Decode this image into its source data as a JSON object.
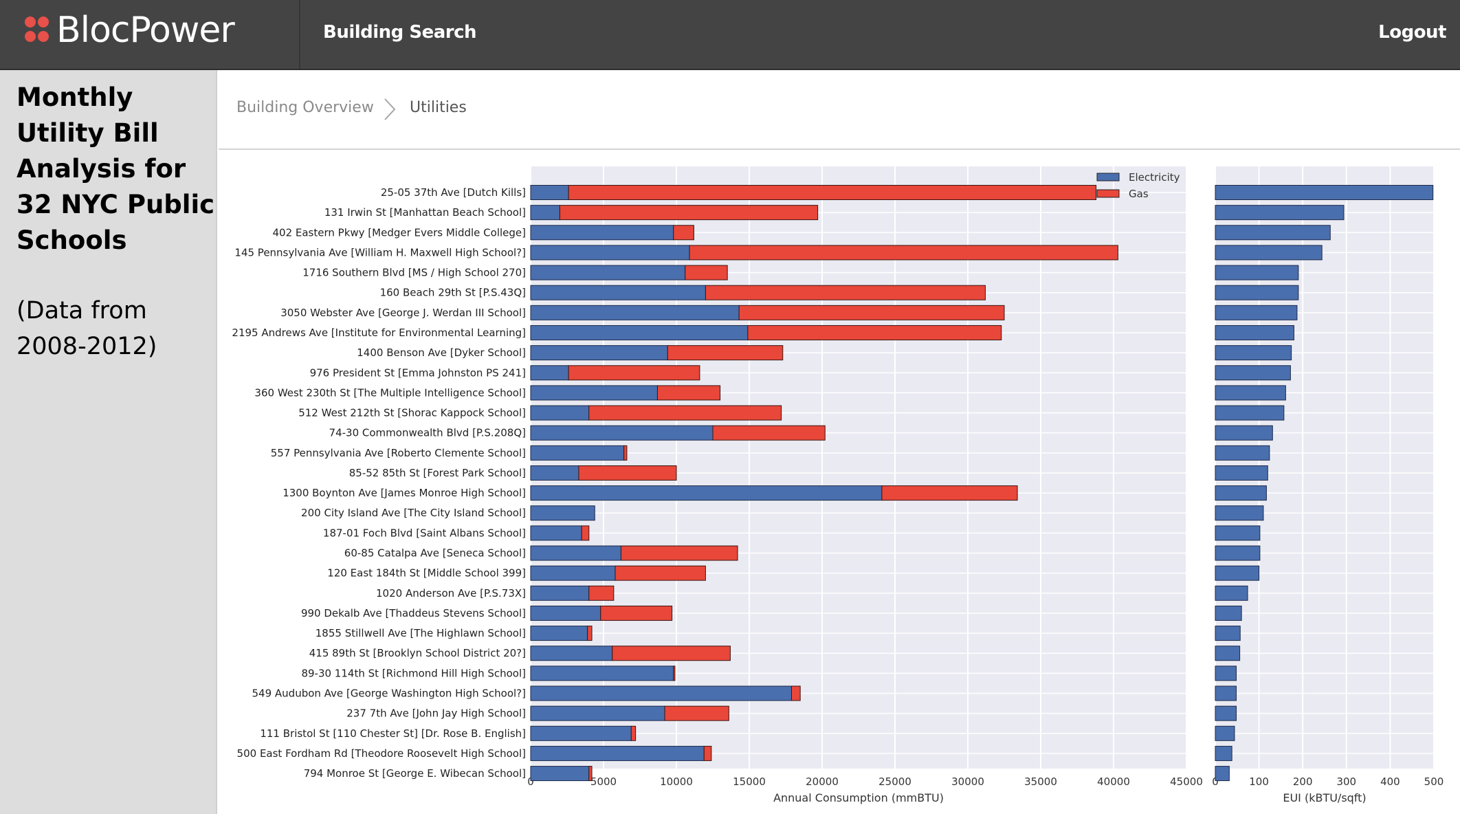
{
  "brand": {
    "name": "BlocPower",
    "dot_color": "#e8504a"
  },
  "nav": {
    "building_search": "Building Search",
    "logout": "Logout"
  },
  "sidebar": {
    "heading": "Monthly Utility Bill Analysis for 32 NYC Public Schools",
    "note": "(Data from 2008-2012)"
  },
  "breadcrumb": {
    "overview": "Building Overview",
    "current": "Utilities"
  },
  "colors": {
    "electricity": "#4a6fae",
    "gas": "#e8473a",
    "plot_bg": "#eaeaf2",
    "topbar": "#444444"
  },
  "chart_data": [
    {
      "type": "bar",
      "orientation": "horizontal",
      "stacked": true,
      "title": "",
      "xlabel": "Annual Consumption (mmBTU)",
      "ylabel": "",
      "xlim": [
        0,
        45000
      ],
      "xticks": [
        "0",
        "5000",
        "10000",
        "15000",
        "20000",
        "25000",
        "30000",
        "35000",
        "40000",
        "45000"
      ],
      "grid": true,
      "legend_position": "top-right",
      "categories": [
        "25-05 37th Ave [Dutch Kills]",
        "131 Irwin St [Manhattan Beach School]",
        "402 Eastern Pkwy [Medger Evers Middle College]",
        "145 Pennsylvania Ave [William H. Maxwell High School?]",
        "1716 Southern Blvd [MS / High School 270]",
        "160 Beach 29th St [P.S.43Q]",
        "3050 Webster Ave [George J. Werdan III School]",
        "2195 Andrews Ave [Institute for Environmental Learning]",
        "1400 Benson Ave [Dyker School]",
        "976 President St [Emma Johnston PS 241]",
        "360 West 230th St [The Multiple Intelligence School]",
        "512 West 212th St [Shorac Kappock School]",
        "74-30 Commonwealth Blvd [P.S.208Q]",
        "557 Pennsylvania Ave [Roberto Clemente School]",
        "85-52 85th St [Forest Park School]",
        "1300 Boynton Ave [James Monroe High School]",
        "200 City Island Ave [The City Island School]",
        "187-01 Foch Blvd [Saint Albans School]",
        "60-85 Catalpa Ave [Seneca School]",
        "120 East 184th St [Middle School 399]",
        "1020 Anderson Ave [P.S.73X]",
        "990 Dekalb Ave [Thaddeus Stevens School]",
        "1855 Stillwell Ave [The Highlawn School]",
        "415 89th St [Brooklyn School District 20?]",
        "89-30 114th St [Richmond Hill High School]",
        "549 Audubon Ave [George Washington High School?]",
        "237 7th Ave [John Jay High School]",
        "111 Bristol St [110 Chester St] [Dr. Rose B. English]",
        "500 East Fordham Rd [Theodore Roosevelt High School]",
        "794 Monroe St [George E. Wibecan School]"
      ],
      "series": [
        {
          "name": "Electricity",
          "color": "#4a6fae",
          "values": [
            2600,
            2000,
            9800,
            10900,
            10600,
            12000,
            14300,
            14900,
            9400,
            2600,
            8700,
            4000,
            12500,
            6400,
            3300,
            24100,
            4400,
            3500,
            6200,
            5800,
            4000,
            4800,
            3900,
            5600,
            9800,
            17900,
            9200,
            6900,
            11900,
            4000
          ]
        },
        {
          "name": "Gas",
          "color": "#e8473a",
          "values": [
            36200,
            17700,
            1400,
            29400,
            2900,
            19200,
            18200,
            17400,
            7900,
            9000,
            4300,
            13200,
            7700,
            200,
            6700,
            9300,
            0,
            500,
            8000,
            6200,
            1700,
            4900,
            300,
            8100,
            100,
            600,
            4400,
            300,
            500,
            200
          ]
        }
      ]
    },
    {
      "type": "bar",
      "orientation": "horizontal",
      "title": "",
      "xlabel": "EUI (kBTU/sqft)",
      "ylabel": "",
      "xlim": [
        0,
        500
      ],
      "xticks": [
        "0",
        "100",
        "200",
        "300",
        "400",
        "500"
      ],
      "grid": true,
      "series": [
        {
          "color": "#4a6fae",
          "values": [
            498,
            294,
            263,
            244,
            190,
            190,
            187,
            180,
            174,
            172,
            161,
            157,
            131,
            124,
            120,
            117,
            110,
            102,
            102,
            100,
            74,
            60,
            57,
            56,
            48,
            48,
            48,
            44,
            38,
            32
          ]
        }
      ]
    }
  ]
}
